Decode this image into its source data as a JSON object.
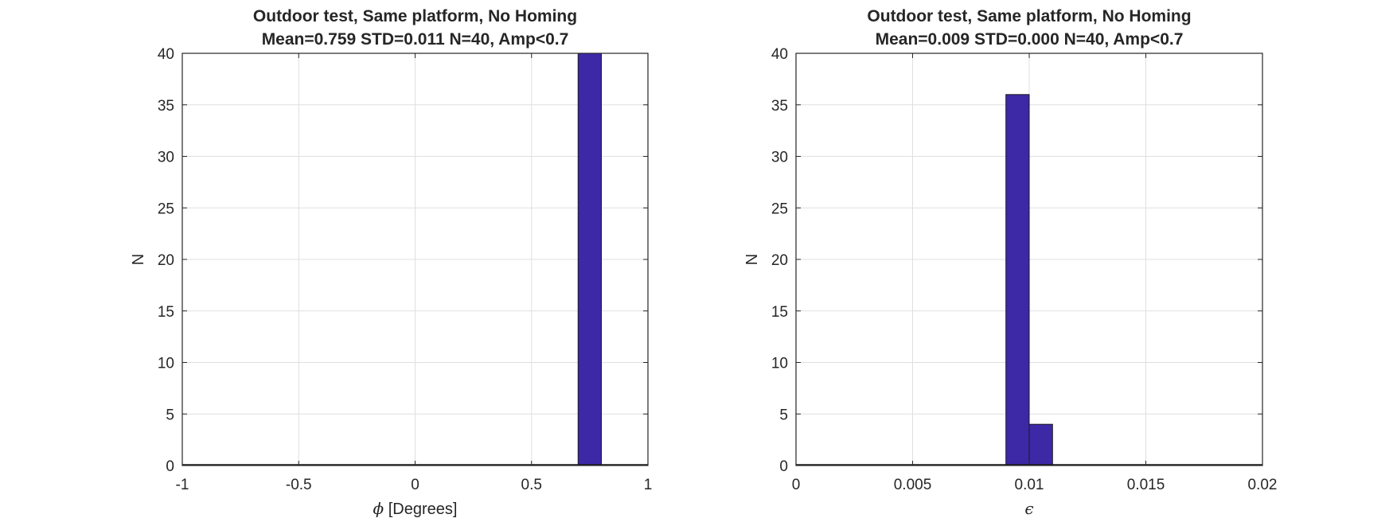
{
  "chart_data": [
    {
      "type": "bar",
      "title": "Outdoor test, Same platform, No Homing",
      "subtitle": "Mean=0.759 STD=0.011 N=40, Amp<0.7",
      "xlabel_symbol": "ϕ",
      "xlabel": "[Degrees]",
      "ylabel": "N",
      "xlim": [
        -1,
        1
      ],
      "ylim": [
        0,
        40
      ],
      "xticks": [
        -1,
        -0.5,
        0,
        0.5,
        1
      ],
      "xtick_labels": [
        "-1",
        "-0.5",
        "0",
        "0.5",
        "1"
      ],
      "yticks": [
        0,
        5,
        10,
        15,
        20,
        25,
        30,
        35,
        40
      ],
      "grid": true,
      "bin_edges": [
        -1.0,
        -0.9,
        -0.8,
        -0.7,
        -0.6,
        -0.5,
        -0.4,
        -0.3,
        -0.2,
        -0.1,
        0.0,
        0.1,
        0.2,
        0.3,
        0.4,
        0.5,
        0.6,
        0.7,
        0.8,
        0.9,
        1.0
      ],
      "values": [
        0,
        0,
        0,
        0,
        0,
        0,
        0,
        0,
        0,
        0,
        0,
        0,
        0,
        0,
        0,
        0,
        0,
        40,
        0,
        0
      ],
      "color": "#3d28a6"
    },
    {
      "type": "bar",
      "title": "Outdoor test, Same platform, No Homing",
      "subtitle": "Mean=0.009 STD=0.000 N=40, Amp<0.7",
      "xlabel_symbol": "ϵ",
      "xlabel": "",
      "ylabel": "N",
      "xlim": [
        0,
        0.02
      ],
      "ylim": [
        0,
        40
      ],
      "xticks": [
        0,
        0.005,
        0.01,
        0.015,
        0.02
      ],
      "xtick_labels": [
        "0",
        "0.005",
        "0.01",
        "0.015",
        "0.02"
      ],
      "yticks": [
        0,
        5,
        10,
        15,
        20,
        25,
        30,
        35,
        40
      ],
      "grid": true,
      "bin_edges": [
        0.0,
        0.001,
        0.002,
        0.003,
        0.004,
        0.005,
        0.006,
        0.007,
        0.008,
        0.009,
        0.01,
        0.011,
        0.012,
        0.013,
        0.014,
        0.015,
        0.016,
        0.017,
        0.018,
        0.019,
        0.02
      ],
      "values": [
        0,
        0,
        0,
        0,
        0,
        0,
        0,
        0,
        0,
        36,
        4,
        0,
        0,
        0,
        0,
        0,
        0,
        0,
        0,
        0
      ],
      "color": "#3d28a6"
    }
  ]
}
